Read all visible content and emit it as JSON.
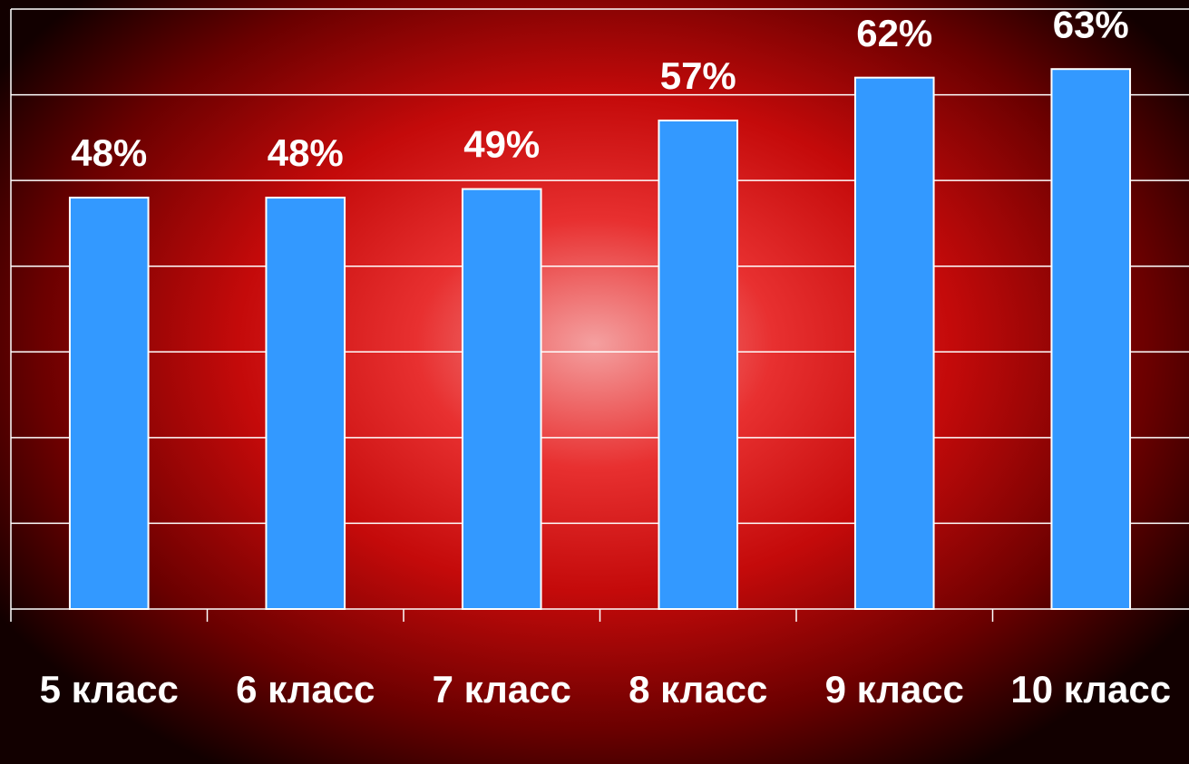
{
  "chart_data": {
    "type": "bar",
    "categories": [
      "5 класс",
      "6 класс",
      "7 класс",
      "8 класс",
      "9 класс",
      "10 класс"
    ],
    "values": [
      48,
      48,
      49,
      57,
      62,
      63
    ],
    "value_labels": [
      "48%",
      "48%",
      "49%",
      "57%",
      "62%",
      "63%"
    ],
    "color": "#3399ff",
    "ylim": [
      0,
      70
    ],
    "yticks": [
      0,
      10,
      20,
      30,
      40,
      50,
      60,
      70
    ],
    "grid": true
  }
}
